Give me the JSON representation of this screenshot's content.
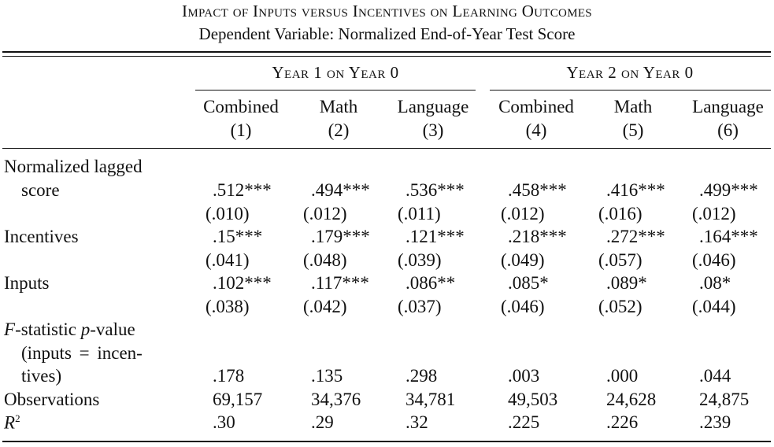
{
  "title": "Impact of Inputs versus Incentives on Learning Outcomes",
  "subtitle": "Dependent Variable: Normalized End-of-Year Test Score",
  "groups": [
    "Year 1 on Year 0",
    "Year 2 on Year 0"
  ],
  "columns": [
    {
      "name": "Combined",
      "num": "(1)"
    },
    {
      "name": "Math",
      "num": "(2)"
    },
    {
      "name": "Language",
      "num": "(3)"
    },
    {
      "name": "Combined",
      "num": "(4)"
    },
    {
      "name": "Math",
      "num": "(5)"
    },
    {
      "name": "Language",
      "num": "(6)"
    }
  ],
  "rows": {
    "lagged": {
      "label_line1": "Normalized lagged",
      "label_line2": "score",
      "coef": [
        ".512***",
        ".494***",
        ".536***",
        ".458***",
        ".416***",
        ".499***"
      ],
      "se": [
        "(.010)",
        "(.012)",
        "(.011)",
        "(.012)",
        "(.016)",
        "(.012)"
      ]
    },
    "incentives": {
      "label": "Incentives",
      "coef": [
        ".15***",
        ".179***",
        ".121***",
        ".218***",
        ".272***",
        ".164***"
      ],
      "se": [
        "(.041)",
        "(.048)",
        "(.039)",
        "(.049)",
        "(.057)",
        "(.046)"
      ]
    },
    "inputs": {
      "label": "Inputs",
      "coef": [
        ".102***",
        ".117***",
        ".086**",
        ".085*",
        ".089*",
        ".08*"
      ],
      "se": [
        "(.038)",
        "(.042)",
        "(.037)",
        "(.046)",
        "(.052)",
        "(.044)"
      ]
    },
    "fstat": {
      "label_f": "F",
      "label_rest1": "-statistic ",
      "label_p": "p",
      "label_rest2": "-value",
      "label_line2": "(inputs = incen-",
      "label_line3": "tives)",
      "values": [
        ".178",
        ".135",
        ".298",
        ".003",
        ".000",
        ".044"
      ]
    },
    "observations": {
      "label": "Observations",
      "values": [
        "69,157",
        "34,376",
        "34,781",
        "49,503",
        "24,628",
        "24,875"
      ]
    },
    "r2": {
      "label_r": "R",
      "label_sup": "2",
      "values": [
        ".30",
        ".29",
        ".32",
        ".225",
        ".226",
        ".239"
      ]
    }
  }
}
